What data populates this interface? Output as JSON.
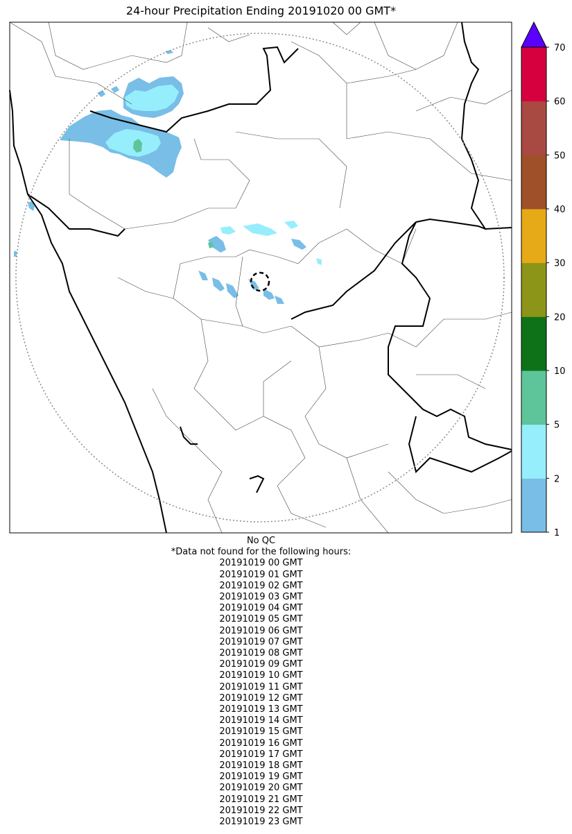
{
  "title": "24-hour Precipitation Ending 20191020 00 GMT*",
  "qc_note": "No QC",
  "missing_header": "*Data not found for the following hours:",
  "missing_hours": [
    "20191019 00 GMT",
    "20191019 01 GMT",
    "20191019 02 GMT",
    "20191019 03 GMT",
    "20191019 04 GMT",
    "20191019 05 GMT",
    "20191019 06 GMT",
    "20191019 07 GMT",
    "20191019 08 GMT",
    "20191019 09 GMT",
    "20191019 10 GMT",
    "20191019 11 GMT",
    "20191019 12 GMT",
    "20191019 13 GMT",
    "20191019 14 GMT",
    "20191019 15 GMT",
    "20191019 16 GMT",
    "20191019 17 GMT",
    "20191019 18 GMT",
    "20191019 19 GMT",
    "20191019 20 GMT",
    "20191019 21 GMT",
    "20191019 22 GMT",
    "20191019 23 GMT"
  ],
  "colorbar": {
    "levels": [
      1,
      2,
      5,
      10,
      20,
      30,
      40,
      50,
      60,
      70
    ],
    "colors": [
      "#78bee6",
      "#96eefc",
      "#5ec49a",
      "#0e7219",
      "#8c9518",
      "#e6aa18",
      "#a05028",
      "#a84a42",
      "#d6003f"
    ],
    "extend_max_color": "#5a00ff",
    "tick_labels": [
      "1",
      "2",
      "5",
      "10",
      "20",
      "30",
      "40",
      "50",
      "60",
      "70"
    ]
  },
  "map_features": [
    "coastline",
    "state-boundaries",
    "district-boundaries",
    "radar-range-ring",
    "radar-site-marker",
    "precipitation-areas"
  ]
}
